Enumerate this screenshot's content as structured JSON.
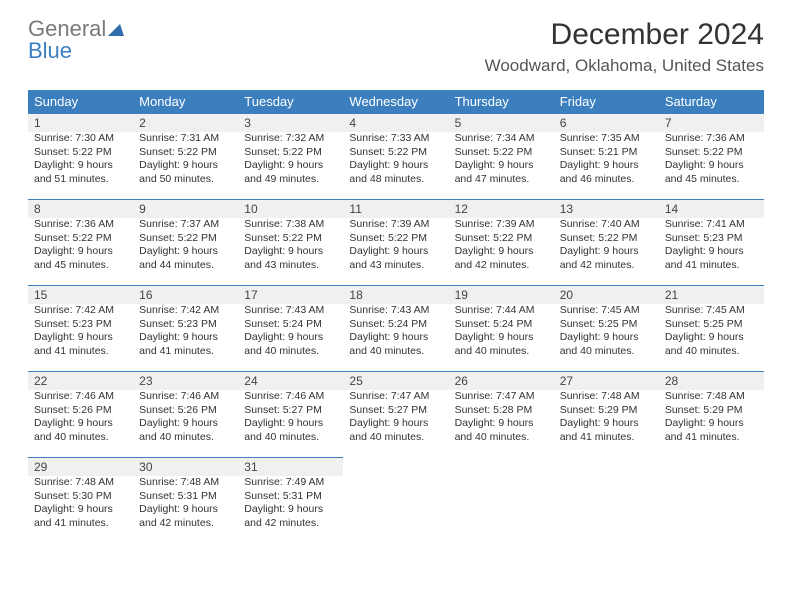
{
  "logo": {
    "top1": "General",
    "bottom1": "Blue"
  },
  "title": "December 2024",
  "location": "Woodward, Oklahoma, United States",
  "colors": {
    "header_bg": "#3b7fbf",
    "header_text": "#ffffff",
    "daynum_bg": "#f0f0f0",
    "daynum_border": "#3b7fbf",
    "page_bg": "#ffffff",
    "logo_blue": "#3b7fbf",
    "logo_gray": "#7a7a7a"
  },
  "weekdays": [
    "Sunday",
    "Monday",
    "Tuesday",
    "Wednesday",
    "Thursday",
    "Friday",
    "Saturday"
  ],
  "weeks": [
    [
      {
        "n": "1",
        "sr": "Sunrise: 7:30 AM",
        "ss": "Sunset: 5:22 PM",
        "d1": "Daylight: 9 hours",
        "d2": "and 51 minutes."
      },
      {
        "n": "2",
        "sr": "Sunrise: 7:31 AM",
        "ss": "Sunset: 5:22 PM",
        "d1": "Daylight: 9 hours",
        "d2": "and 50 minutes."
      },
      {
        "n": "3",
        "sr": "Sunrise: 7:32 AM",
        "ss": "Sunset: 5:22 PM",
        "d1": "Daylight: 9 hours",
        "d2": "and 49 minutes."
      },
      {
        "n": "4",
        "sr": "Sunrise: 7:33 AM",
        "ss": "Sunset: 5:22 PM",
        "d1": "Daylight: 9 hours",
        "d2": "and 48 minutes."
      },
      {
        "n": "5",
        "sr": "Sunrise: 7:34 AM",
        "ss": "Sunset: 5:22 PM",
        "d1": "Daylight: 9 hours",
        "d2": "and 47 minutes."
      },
      {
        "n": "6",
        "sr": "Sunrise: 7:35 AM",
        "ss": "Sunset: 5:21 PM",
        "d1": "Daylight: 9 hours",
        "d2": "and 46 minutes."
      },
      {
        "n": "7",
        "sr": "Sunrise: 7:36 AM",
        "ss": "Sunset: 5:22 PM",
        "d1": "Daylight: 9 hours",
        "d2": "and 45 minutes."
      }
    ],
    [
      {
        "n": "8",
        "sr": "Sunrise: 7:36 AM",
        "ss": "Sunset: 5:22 PM",
        "d1": "Daylight: 9 hours",
        "d2": "and 45 minutes."
      },
      {
        "n": "9",
        "sr": "Sunrise: 7:37 AM",
        "ss": "Sunset: 5:22 PM",
        "d1": "Daylight: 9 hours",
        "d2": "and 44 minutes."
      },
      {
        "n": "10",
        "sr": "Sunrise: 7:38 AM",
        "ss": "Sunset: 5:22 PM",
        "d1": "Daylight: 9 hours",
        "d2": "and 43 minutes."
      },
      {
        "n": "11",
        "sr": "Sunrise: 7:39 AM",
        "ss": "Sunset: 5:22 PM",
        "d1": "Daylight: 9 hours",
        "d2": "and 43 minutes."
      },
      {
        "n": "12",
        "sr": "Sunrise: 7:39 AM",
        "ss": "Sunset: 5:22 PM",
        "d1": "Daylight: 9 hours",
        "d2": "and 42 minutes."
      },
      {
        "n": "13",
        "sr": "Sunrise: 7:40 AM",
        "ss": "Sunset: 5:22 PM",
        "d1": "Daylight: 9 hours",
        "d2": "and 42 minutes."
      },
      {
        "n": "14",
        "sr": "Sunrise: 7:41 AM",
        "ss": "Sunset: 5:23 PM",
        "d1": "Daylight: 9 hours",
        "d2": "and 41 minutes."
      }
    ],
    [
      {
        "n": "15",
        "sr": "Sunrise: 7:42 AM",
        "ss": "Sunset: 5:23 PM",
        "d1": "Daylight: 9 hours",
        "d2": "and 41 minutes."
      },
      {
        "n": "16",
        "sr": "Sunrise: 7:42 AM",
        "ss": "Sunset: 5:23 PM",
        "d1": "Daylight: 9 hours",
        "d2": "and 41 minutes."
      },
      {
        "n": "17",
        "sr": "Sunrise: 7:43 AM",
        "ss": "Sunset: 5:24 PM",
        "d1": "Daylight: 9 hours",
        "d2": "and 40 minutes."
      },
      {
        "n": "18",
        "sr": "Sunrise: 7:43 AM",
        "ss": "Sunset: 5:24 PM",
        "d1": "Daylight: 9 hours",
        "d2": "and 40 minutes."
      },
      {
        "n": "19",
        "sr": "Sunrise: 7:44 AM",
        "ss": "Sunset: 5:24 PM",
        "d1": "Daylight: 9 hours",
        "d2": "and 40 minutes."
      },
      {
        "n": "20",
        "sr": "Sunrise: 7:45 AM",
        "ss": "Sunset: 5:25 PM",
        "d1": "Daylight: 9 hours",
        "d2": "and 40 minutes."
      },
      {
        "n": "21",
        "sr": "Sunrise: 7:45 AM",
        "ss": "Sunset: 5:25 PM",
        "d1": "Daylight: 9 hours",
        "d2": "and 40 minutes."
      }
    ],
    [
      {
        "n": "22",
        "sr": "Sunrise: 7:46 AM",
        "ss": "Sunset: 5:26 PM",
        "d1": "Daylight: 9 hours",
        "d2": "and 40 minutes."
      },
      {
        "n": "23",
        "sr": "Sunrise: 7:46 AM",
        "ss": "Sunset: 5:26 PM",
        "d1": "Daylight: 9 hours",
        "d2": "and 40 minutes."
      },
      {
        "n": "24",
        "sr": "Sunrise: 7:46 AM",
        "ss": "Sunset: 5:27 PM",
        "d1": "Daylight: 9 hours",
        "d2": "and 40 minutes."
      },
      {
        "n": "25",
        "sr": "Sunrise: 7:47 AM",
        "ss": "Sunset: 5:27 PM",
        "d1": "Daylight: 9 hours",
        "d2": "and 40 minutes."
      },
      {
        "n": "26",
        "sr": "Sunrise: 7:47 AM",
        "ss": "Sunset: 5:28 PM",
        "d1": "Daylight: 9 hours",
        "d2": "and 40 minutes."
      },
      {
        "n": "27",
        "sr": "Sunrise: 7:48 AM",
        "ss": "Sunset: 5:29 PM",
        "d1": "Daylight: 9 hours",
        "d2": "and 41 minutes."
      },
      {
        "n": "28",
        "sr": "Sunrise: 7:48 AM",
        "ss": "Sunset: 5:29 PM",
        "d1": "Daylight: 9 hours",
        "d2": "and 41 minutes."
      }
    ],
    [
      {
        "n": "29",
        "sr": "Sunrise: 7:48 AM",
        "ss": "Sunset: 5:30 PM",
        "d1": "Daylight: 9 hours",
        "d2": "and 41 minutes."
      },
      {
        "n": "30",
        "sr": "Sunrise: 7:48 AM",
        "ss": "Sunset: 5:31 PM",
        "d1": "Daylight: 9 hours",
        "d2": "and 42 minutes."
      },
      {
        "n": "31",
        "sr": "Sunrise: 7:49 AM",
        "ss": "Sunset: 5:31 PM",
        "d1": "Daylight: 9 hours",
        "d2": "and 42 minutes."
      },
      null,
      null,
      null,
      null
    ]
  ]
}
